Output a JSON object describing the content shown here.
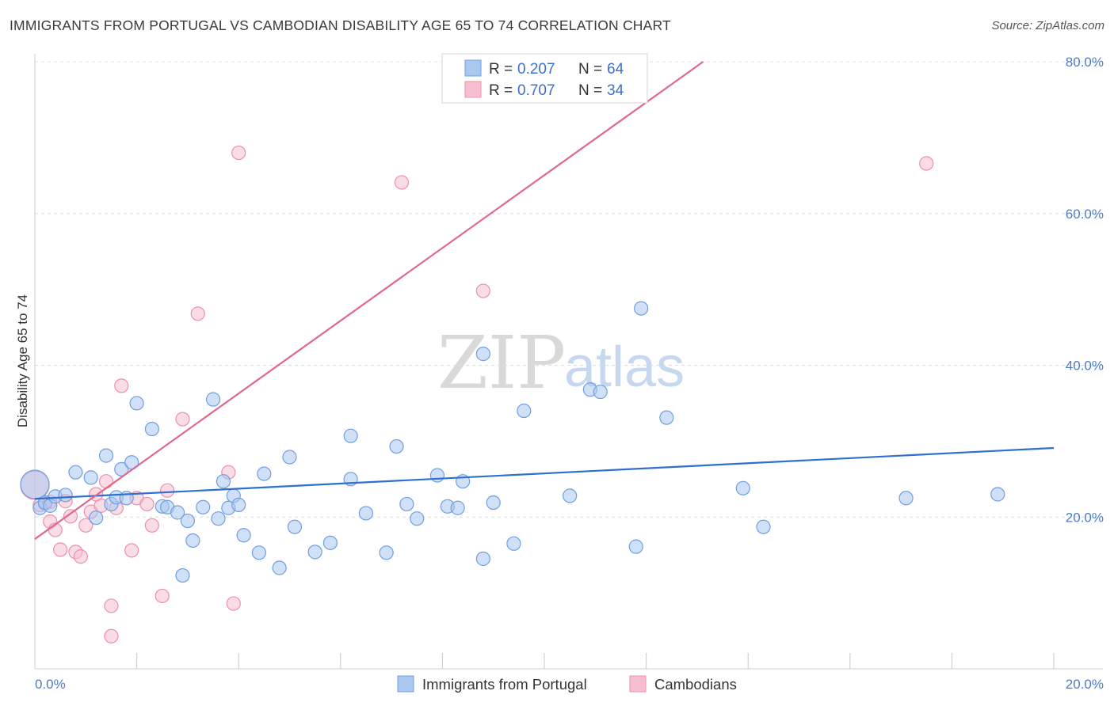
{
  "header": {
    "title": "IMMIGRANTS FROM PORTUGAL VS CAMBODIAN DISABILITY AGE 65 TO 74 CORRELATION CHART",
    "source": "Source: ZipAtlas.com"
  },
  "legend": {
    "series1": {
      "r_label": "R = ",
      "r_value": "0.207",
      "n_label": "N = ",
      "n_value": "64"
    },
    "series2": {
      "r_label": "R = ",
      "r_value": "0.707",
      "n_label": "N = ",
      "n_value": "34"
    }
  },
  "watermark": {
    "zip": "ZIP",
    "atlas": "atlas"
  },
  "colors": {
    "blue_fill": "#a9c8f0",
    "blue_stroke": "#6f9fe0",
    "blue_line": "#2f6fd0",
    "pink_fill": "#f6bfd0",
    "pink_stroke": "#ec8fae",
    "pink_line": "#e0688f",
    "grid": "#dcdcdc",
    "tick_text": "#4a7bd0"
  },
  "chart_data": {
    "type": "scatter",
    "title": "IMMIGRANTS FROM PORTUGAL VS CAMBODIAN DISABILITY AGE 65 TO 74 CORRELATION CHART",
    "xlabel": "",
    "ylabel": "Disability Age 65 to 74",
    "xlim": [
      0,
      20
    ],
    "ylim": [
      0,
      80
    ],
    "x_ticks": [
      "0.0%",
      "20.0%"
    ],
    "y_ticks": [
      "20.0%",
      "40.0%",
      "60.0%",
      "80.0%"
    ],
    "grid": true,
    "legend_position": "top-center",
    "series": [
      {
        "name": "Immigrants from Portugal",
        "color": "#a9c8f0",
        "r": 0.207,
        "n": 64,
        "trend": {
          "x": [
            0,
            20
          ],
          "y": [
            22.4,
            29.1
          ]
        },
        "points": [
          [
            0.0,
            24.3
          ],
          [
            0.1,
            21.2
          ],
          [
            0.2,
            21.9
          ],
          [
            0.3,
            21.5
          ],
          [
            0.4,
            22.7
          ],
          [
            0.6,
            22.9
          ],
          [
            0.8,
            25.9
          ],
          [
            1.1,
            25.2
          ],
          [
            1.2,
            19.9
          ],
          [
            1.4,
            28.1
          ],
          [
            1.5,
            21.7
          ],
          [
            1.6,
            22.6
          ],
          [
            1.7,
            26.3
          ],
          [
            1.8,
            22.5
          ],
          [
            1.9,
            27.2
          ],
          [
            2.0,
            35.0
          ],
          [
            2.3,
            31.6
          ],
          [
            2.5,
            21.4
          ],
          [
            2.6,
            21.3
          ],
          [
            2.8,
            20.6
          ],
          [
            2.9,
            12.3
          ],
          [
            3.0,
            19.5
          ],
          [
            3.1,
            16.9
          ],
          [
            3.3,
            21.3
          ],
          [
            3.5,
            35.5
          ],
          [
            3.6,
            19.8
          ],
          [
            3.7,
            24.7
          ],
          [
            3.8,
            21.2
          ],
          [
            3.9,
            22.8
          ],
          [
            4.0,
            21.6
          ],
          [
            4.1,
            17.6
          ],
          [
            4.4,
            15.3
          ],
          [
            4.5,
            25.7
          ],
          [
            4.8,
            13.3
          ],
          [
            5.0,
            27.9
          ],
          [
            5.1,
            18.7
          ],
          [
            5.5,
            15.4
          ],
          [
            5.8,
            16.6
          ],
          [
            6.2,
            30.7
          ],
          [
            6.2,
            25.0
          ],
          [
            6.5,
            20.5
          ],
          [
            6.9,
            15.3
          ],
          [
            7.1,
            29.3
          ],
          [
            7.3,
            21.7
          ],
          [
            7.5,
            19.8
          ],
          [
            7.9,
            25.5
          ],
          [
            8.1,
            21.4
          ],
          [
            8.3,
            21.2
          ],
          [
            8.4,
            24.7
          ],
          [
            8.8,
            41.5
          ],
          [
            8.8,
            14.5
          ],
          [
            9.0,
            21.9
          ],
          [
            9.4,
            16.5
          ],
          [
            9.6,
            34.0
          ],
          [
            10.5,
            22.8
          ],
          [
            10.9,
            36.8
          ],
          [
            11.1,
            36.5
          ],
          [
            11.8,
            16.1
          ],
          [
            11.9,
            47.5
          ],
          [
            12.4,
            33.1
          ],
          [
            13.9,
            23.8
          ],
          [
            14.3,
            18.7
          ],
          [
            17.1,
            22.5
          ],
          [
            18.9,
            23.0
          ]
        ]
      },
      {
        "name": "Cambodians",
        "color": "#f6bfd0",
        "r": 0.707,
        "n": 34,
        "trend": {
          "x": [
            0,
            20
          ],
          "y": [
            17.1,
            113.0
          ]
        },
        "points": [
          [
            0.0,
            24.2
          ],
          [
            0.1,
            21.6
          ],
          [
            0.2,
            21.8
          ],
          [
            0.3,
            19.4
          ],
          [
            0.4,
            18.3
          ],
          [
            0.5,
            15.7
          ],
          [
            0.6,
            22.1
          ],
          [
            0.7,
            20.1
          ],
          [
            0.8,
            15.4
          ],
          [
            0.9,
            14.8
          ],
          [
            1.0,
            18.9
          ],
          [
            1.1,
            20.7
          ],
          [
            1.3,
            21.5
          ],
          [
            1.4,
            24.7
          ],
          [
            1.5,
            8.3
          ],
          [
            1.5,
            4.3
          ],
          [
            1.6,
            21.2
          ],
          [
            1.7,
            37.3
          ],
          [
            1.9,
            15.6
          ],
          [
            2.0,
            22.5
          ],
          [
            2.2,
            21.7
          ],
          [
            2.3,
            18.9
          ],
          [
            2.5,
            9.6
          ],
          [
            2.6,
            23.5
          ],
          [
            2.9,
            32.9
          ],
          [
            3.2,
            46.8
          ],
          [
            3.8,
            25.9
          ],
          [
            3.9,
            8.6
          ],
          [
            4.0,
            68.0
          ],
          [
            7.2,
            64.1
          ],
          [
            8.8,
            49.8
          ],
          [
            17.5,
            66.6
          ],
          [
            0.3,
            22.0
          ],
          [
            1.2,
            23.0
          ]
        ]
      }
    ]
  }
}
